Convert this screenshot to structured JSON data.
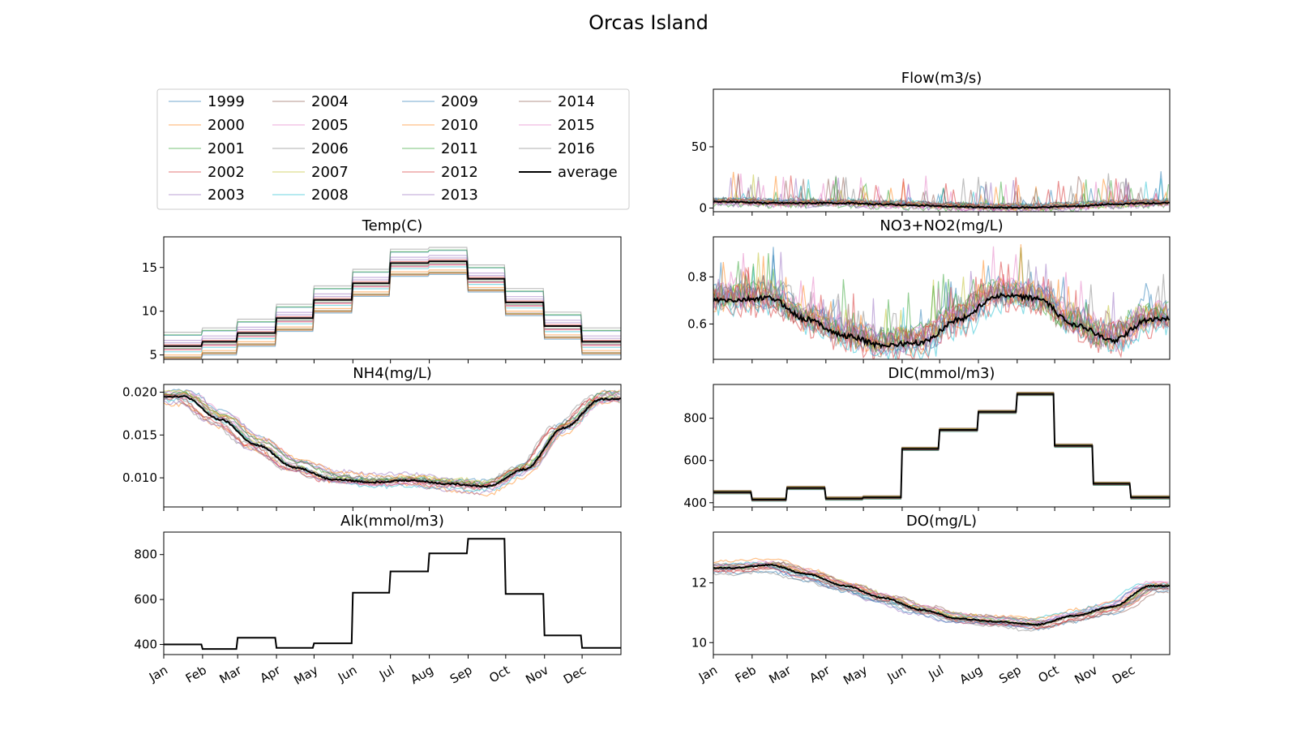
{
  "figure": {
    "title": "Orcas Island"
  },
  "legend": {
    "columns": 4,
    "entries": [
      {
        "label": "1999",
        "color": "#1f77b4"
      },
      {
        "label": "2000",
        "color": "#ff7f0e"
      },
      {
        "label": "2001",
        "color": "#2ca02c"
      },
      {
        "label": "2002",
        "color": "#d62728"
      },
      {
        "label": "2003",
        "color": "#9467bd"
      },
      {
        "label": "2004",
        "color": "#8c564b"
      },
      {
        "label": "2005",
        "color": "#e377c2"
      },
      {
        "label": "2006",
        "color": "#7f7f7f"
      },
      {
        "label": "2007",
        "color": "#bcbd22"
      },
      {
        "label": "2008",
        "color": "#17becf"
      },
      {
        "label": "2009",
        "color": "#1f77b4"
      },
      {
        "label": "2010",
        "color": "#ff7f0e"
      },
      {
        "label": "2011",
        "color": "#2ca02c"
      },
      {
        "label": "2012",
        "color": "#d62728"
      },
      {
        "label": "2013",
        "color": "#9467bd"
      },
      {
        "label": "2014",
        "color": "#8c564b"
      },
      {
        "label": "2015",
        "color": "#e377c2"
      },
      {
        "label": "2016",
        "color": "#7f7f7f"
      },
      {
        "label": "average",
        "color": "#000000"
      }
    ]
  },
  "chart_data": [
    {
      "type": "line",
      "title": "Temp(C)",
      "panel": "left-2",
      "shape": "step",
      "ylim": [
        4.5,
        18.5
      ],
      "yticks": [
        5,
        10,
        15
      ],
      "show_xlabels": false,
      "months": [
        "Jan",
        "Feb",
        "Mar",
        "Apr",
        "May",
        "Jun",
        "Jul",
        "Aug",
        "Sep",
        "Oct",
        "Nov",
        "Dec"
      ],
      "average_monthly": [
        6.0,
        6.5,
        7.5,
        9.2,
        11.3,
        13.2,
        15.5,
        15.7,
        13.7,
        11.0,
        8.3,
        6.5
      ],
      "year_spread": 1.6
    },
    {
      "type": "line",
      "title": "NH4(mg/L)",
      "panel": "left-3",
      "shape": "smooth",
      "ylim": [
        0.0066,
        0.0209
      ],
      "yticks": [
        0.01,
        0.015,
        0.02
      ],
      "tickfmt": "3",
      "show_xlabels": false,
      "average_monthly": [
        0.0195,
        0.0168,
        0.0138,
        0.0112,
        0.0098,
        0.0095,
        0.0097,
        0.0093,
        0.009,
        0.011,
        0.0158,
        0.0192
      ],
      "year_spread": 0.0012
    },
    {
      "type": "line",
      "title": "Alk(mmol/m3)",
      "panel": "left-4",
      "shape": "step",
      "ylim": [
        355,
        900
      ],
      "yticks": [
        400,
        600,
        800
      ],
      "show_xlabels": true,
      "months": [
        "Jan",
        "Feb",
        "Mar",
        "Apr",
        "May",
        "Jun",
        "Jul",
        "Aug",
        "Sep",
        "Oct",
        "Nov",
        "Dec"
      ],
      "average_monthly": [
        400,
        380,
        430,
        385,
        405,
        630,
        725,
        805,
        870,
        625,
        440,
        385
      ],
      "year_spread": 0
    },
    {
      "type": "line",
      "title": "Flow(m3/s)",
      "panel": "right-1",
      "shape": "noisy",
      "ylim": [
        -3,
        97
      ],
      "yticks": [
        0,
        50
      ],
      "show_xlabels": false,
      "average_monthly": [
        5,
        4,
        4,
        4,
        3,
        2,
        1,
        0.3,
        0.5,
        1.5,
        3,
        4
      ],
      "year_spread": 3
    },
    {
      "type": "line",
      "title": "NO3+NO2(mg/L)",
      "panel": "right-2",
      "shape": "noisy",
      "ylim": [
        0.45,
        0.97
      ],
      "yticks": [
        0.6,
        0.8
      ],
      "show_xlabels": false,
      "average_monthly": [
        0.7,
        0.71,
        0.62,
        0.55,
        0.51,
        0.52,
        0.62,
        0.72,
        0.71,
        0.6,
        0.53,
        0.62
      ],
      "year_spread": 0.06
    },
    {
      "type": "line",
      "title": "DIC(mmol/m3)",
      "panel": "right-3",
      "shape": "step",
      "ylim": [
        380,
        960
      ],
      "yticks": [
        400,
        600,
        800
      ],
      "show_xlabels": false,
      "average_monthly": [
        450,
        415,
        470,
        420,
        425,
        655,
        745,
        830,
        915,
        670,
        490,
        425
      ],
      "year_spread": 8
    },
    {
      "type": "line",
      "title": "DO(mg/L)",
      "panel": "right-4",
      "shape": "smooth",
      "ylim": [
        9.6,
        13.7
      ],
      "yticks": [
        10,
        12
      ],
      "show_xlabels": true,
      "months": [
        "Jan",
        "Feb",
        "Mar",
        "Apr",
        "May",
        "Jun",
        "Jul",
        "Aug",
        "Sep",
        "Oct",
        "Nov",
        "Dec"
      ],
      "average_monthly": [
        12.5,
        12.6,
        12.3,
        11.9,
        11.5,
        11.1,
        10.8,
        10.7,
        10.6,
        10.9,
        11.2,
        11.9
      ],
      "year_spread": 0.25
    }
  ]
}
